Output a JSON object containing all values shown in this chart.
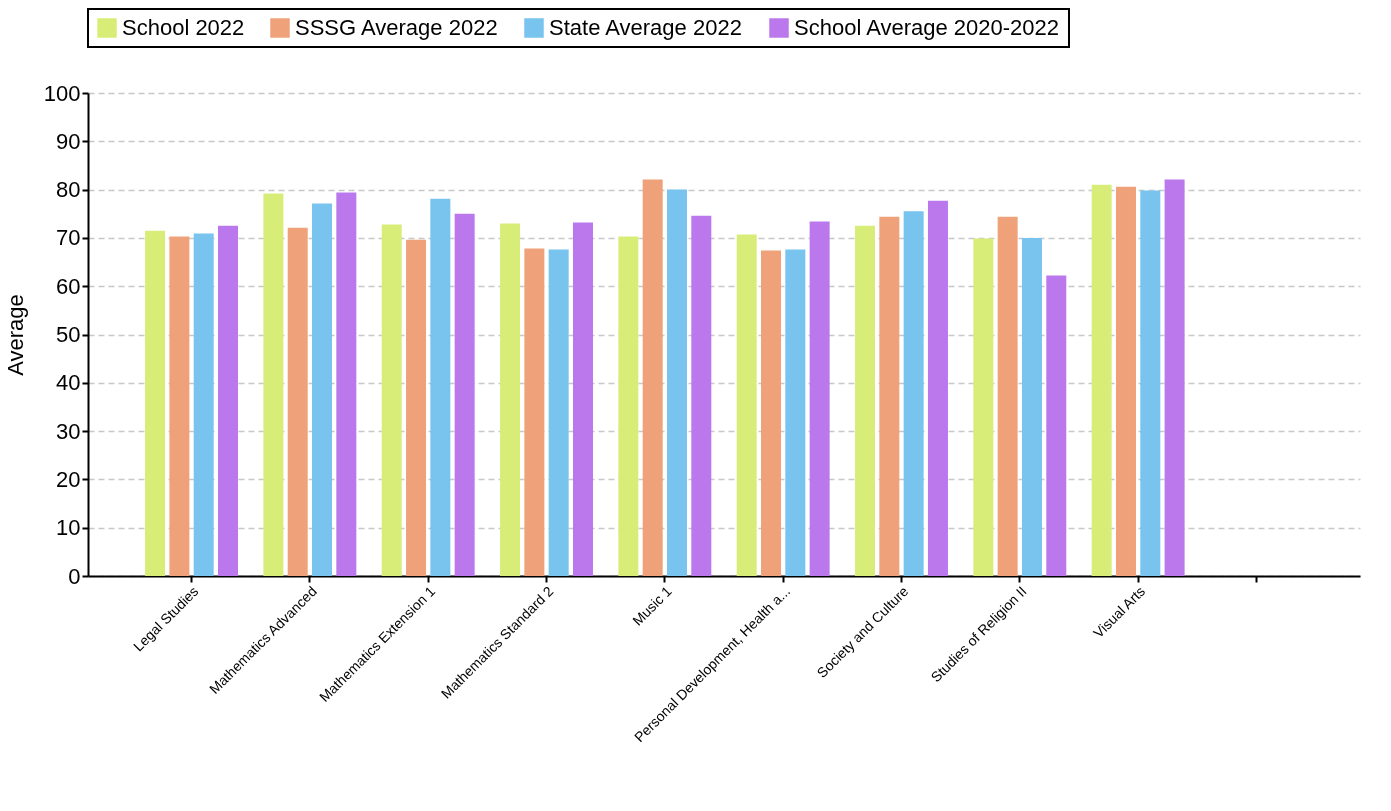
{
  "chart_data": {
    "type": "bar",
    "ylabel": "Average",
    "categories": [
      "Legal Studies",
      "Mathematics Advanced",
      "Mathematics Extension 1",
      "Mathematics Standard 2",
      "Music 1",
      "Personal Development, Health a...",
      "Society and Culture",
      "Studies of Religion II",
      "Visual Arts",
      null
    ],
    "series": [
      {
        "name": "School 2022",
        "color": "#d8ed78",
        "values": [
          71.5,
          79.2,
          72.8,
          73.0,
          70.3,
          70.7,
          72.5,
          69.9,
          81.0,
          null
        ]
      },
      {
        "name": "SSSG Average 2022",
        "color": "#efa27a",
        "values": [
          70.3,
          72.1,
          69.6,
          67.8,
          82.1,
          67.4,
          74.4,
          74.4,
          80.6,
          null
        ]
      },
      {
        "name": "State Average 2022",
        "color": "#78c4ee",
        "values": [
          70.9,
          77.1,
          78.1,
          67.6,
          80.0,
          67.6,
          75.5,
          70.0,
          79.8,
          null
        ]
      },
      {
        "name": "School Average 2020-2022",
        "color": "#bb78ed",
        "values": [
          72.5,
          79.4,
          75.0,
          73.2,
          74.6,
          73.4,
          77.7,
          62.2,
          82.1,
          null
        ]
      }
    ],
    "ylim": [
      0,
      100
    ],
    "yticks": [
      0,
      10,
      20,
      30,
      40,
      50,
      60,
      70,
      80,
      90,
      100
    ],
    "grid": true,
    "legend": "top"
  }
}
